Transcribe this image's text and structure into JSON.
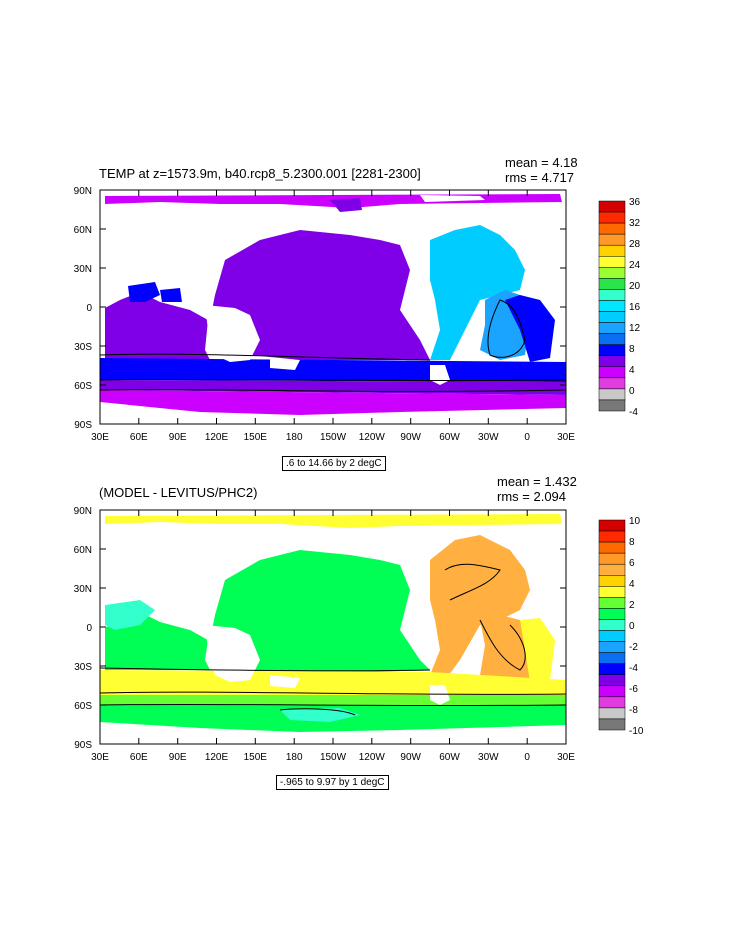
{
  "panels": [
    {
      "title": "TEMP at z=1573.9m, b40.rcp8_5.2300.001 [2281-2300]",
      "mean": "mean = 4.18",
      "rms": "rms = 4.717",
      "contour_info": ".6 to 14.66 by 2 degC",
      "y_ticks": [
        "90N",
        "60N",
        "30N",
        "0",
        "30S",
        "60S",
        "90S"
      ],
      "x_ticks": [
        "30E",
        "60E",
        "90E",
        "120E",
        "150E",
        "180",
        "150W",
        "120W",
        "90W",
        "60W",
        "30W",
        "0",
        "30E"
      ],
      "colorbar": {
        "labels": [
          "36",
          "32",
          "28",
          "24",
          "20",
          "16",
          "12",
          "8",
          "4",
          "0",
          "-4"
        ],
        "colors": [
          "#d40000",
          "#ff2a00",
          "#ff6a00",
          "#ff9a28",
          "#ffd200",
          "#ffff33",
          "#99ff33",
          "#2be34a",
          "#33ffcc",
          "#00e6ff",
          "#00ccff",
          "#1aa3ff",
          "#0a6ff0",
          "#0000ff",
          "#7f00e6",
          "#cc00ff",
          "#e03ce0",
          "#c8c8c8",
          "#787878"
        ]
      }
    },
    {
      "title": "(MODEL - LEVITUS/PHC2)",
      "mean": "mean = 1.432",
      "rms": "rms = 2.094",
      "contour_info": "-.965 to 9.97 by 1 degC",
      "y_ticks": [
        "90N",
        "60N",
        "30N",
        "0",
        "30S",
        "60S",
        "90S"
      ],
      "x_ticks": [
        "30E",
        "60E",
        "90E",
        "120E",
        "150E",
        "180",
        "150W",
        "120W",
        "90W",
        "60W",
        "30W",
        "0",
        "30E"
      ],
      "colorbar": {
        "labels": [
          "10",
          "8",
          "6",
          "4",
          "2",
          "0",
          "-2",
          "-4",
          "-6",
          "-8",
          "-10"
        ],
        "colors": [
          "#d40000",
          "#ff2a00",
          "#ff6a00",
          "#ff9a28",
          "#ffb040",
          "#ffd200",
          "#ffff33",
          "#66ff33",
          "#00ff55",
          "#33ffcc",
          "#00ccff",
          "#1aa3ff",
          "#0a6ff0",
          "#0000ff",
          "#7f00e6",
          "#cc00ff",
          "#e03ce0",
          "#c8c8c8",
          "#787878"
        ]
      }
    }
  ]
}
